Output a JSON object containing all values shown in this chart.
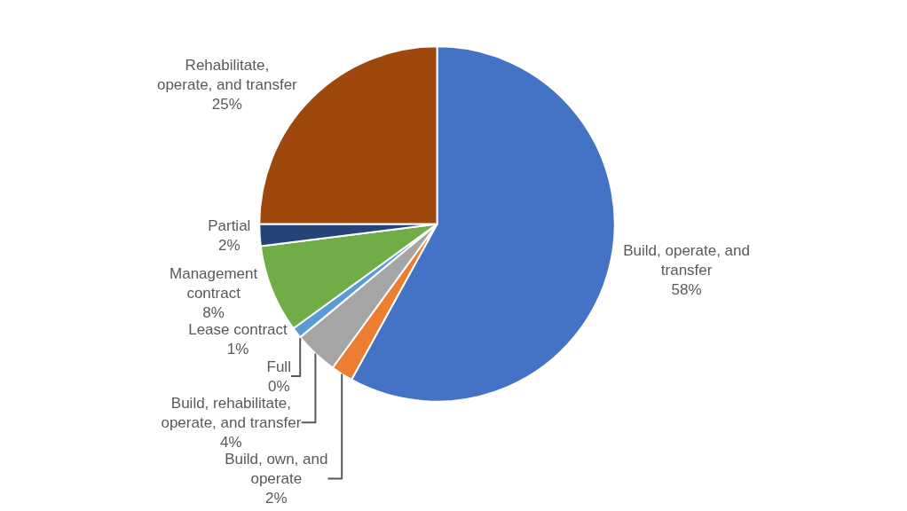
{
  "chart_data": {
    "type": "pie",
    "categories": [
      "Build, operate, and\ntransfer",
      "Build, own, and\noperate",
      "Build, rehabilitate,\noperate, and transfer",
      "Full",
      "Lease contract",
      "Management\ncontract",
      "Partial",
      "Rehabilitate,\noperate, and transfer"
    ],
    "values": [
      58,
      2,
      4,
      0,
      1,
      8,
      2,
      25
    ],
    "value_labels": [
      "58%",
      "2%",
      "4%",
      "0%",
      "1%",
      "8%",
      "2%",
      "25%"
    ],
    "colors": [
      "#4472c4",
      "#ed7d31",
      "#a5a5a5",
      "#ffc000",
      "#5b9bd5",
      "#70ad47",
      "#264478",
      "#9e480e"
    ],
    "legend": false
  }
}
